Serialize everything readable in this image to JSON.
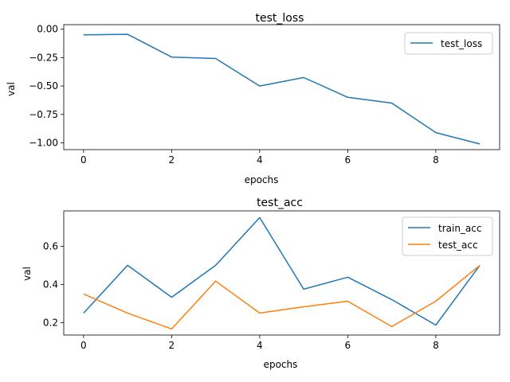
{
  "chart_data": [
    {
      "type": "line",
      "title": "test_loss",
      "xlabel": "epochs",
      "ylabel": "val",
      "x": [
        0,
        1,
        2,
        3,
        4,
        5,
        6,
        7,
        8,
        9
      ],
      "xlim": [
        -0.45,
        9.45
      ],
      "ylim": [
        -1.06,
        0.04
      ],
      "xticks": [
        0,
        2,
        4,
        6,
        8
      ],
      "xtick_labels": [
        "0",
        "2",
        "4",
        "6",
        "8"
      ],
      "yticks": [
        0.0,
        -0.25,
        -0.5,
        -0.75,
        -1.0
      ],
      "ytick_labels": [
        "0.00",
        "−0.25",
        "−0.50",
        "−0.75",
        "−1.00"
      ],
      "grid": false,
      "legend_position": "upper right",
      "series": [
        {
          "name": "test_loss",
          "color": "#1f77b4",
          "values": [
            -0.05,
            -0.045,
            -0.245,
            -0.258,
            -0.5,
            -0.425,
            -0.6,
            -0.65,
            -0.91,
            -1.01
          ]
        }
      ]
    },
    {
      "type": "line",
      "title": "test_acc",
      "xlabel": "epochs",
      "ylabel": "val",
      "x": [
        0,
        1,
        2,
        3,
        4,
        5,
        6,
        7,
        8,
        9
      ],
      "xlim": [
        -0.45,
        9.45
      ],
      "ylim": [
        0.135,
        0.785
      ],
      "xticks": [
        0,
        2,
        4,
        6,
        8
      ],
      "xtick_labels": [
        "0",
        "2",
        "4",
        "6",
        "8"
      ],
      "yticks": [
        0.2,
        0.4,
        0.6
      ],
      "ytick_labels": [
        "0.2",
        "0.4",
        "0.6"
      ],
      "grid": false,
      "legend_position": "upper right",
      "series": [
        {
          "name": "train_acc",
          "color": "#1f77b4",
          "values": [
            0.25,
            0.5,
            0.333,
            0.5,
            0.75,
            0.375,
            0.438,
            0.321,
            0.187,
            0.5
          ]
        },
        {
          "name": "test_acc",
          "color": "#ff7f0e",
          "values": [
            0.35,
            0.25,
            0.167,
            0.417,
            0.25,
            0.283,
            0.312,
            0.179,
            0.312,
            0.5
          ]
        }
      ]
    }
  ]
}
